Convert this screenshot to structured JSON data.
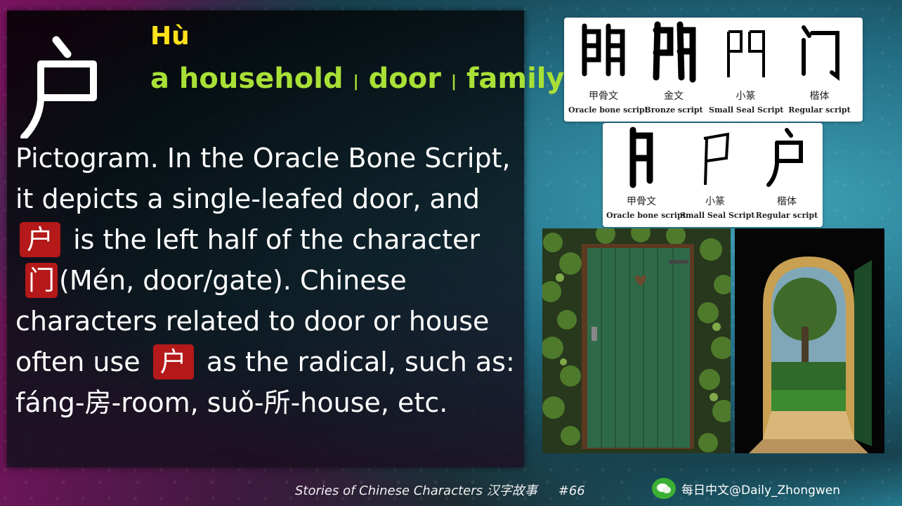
{
  "slide": {
    "character": "户",
    "pinyin": "Hù",
    "meanings": [
      "a household",
      "door",
      "family"
    ],
    "separator": "|",
    "description": {
      "p1": "Pictogram. In the Oracle Bone Script, it depicts a single-leafed door, and",
      "char1": "户",
      "p2": "is the left half of the character",
      "char2": "门",
      "p3": "(Mén, door/gate). Chinese characters related to door or house often use",
      "char3": "户",
      "p4": "as the radical, such as: fáng-房-room, suǒ-所-house, etc."
    }
  },
  "script_table_men": [
    {
      "cn": "甲骨文",
      "en": "Oracle bone script",
      "icon": "oracle-men-glyph"
    },
    {
      "cn": "金文",
      "en": "Bronze script",
      "icon": "bronze-men-glyph"
    },
    {
      "cn": "小篆",
      "en": "Small Seal Script",
      "icon": "seal-men-glyph"
    },
    {
      "cn": "楷体",
      "en": "Regular script",
      "icon": "regular-men-glyph"
    }
  ],
  "script_table_hu": [
    {
      "cn": "甲骨文",
      "en": "Oracle bone script",
      "icon": "oracle-hu-glyph"
    },
    {
      "cn": "小篆",
      "en": "Small Seal Script",
      "icon": "seal-hu-glyph"
    },
    {
      "cn": "楷体",
      "en": "Regular script",
      "icon": "regular-hu-glyph"
    }
  ],
  "photos": [
    "green-door-photo",
    "arched-door-photo"
  ],
  "footer": {
    "series": "Stories of Chinese Characters 汉字故事",
    "number": "#66",
    "brand": "每日中文@Daily_Zhongwen"
  },
  "colors": {
    "pinyin": "#ffe11a",
    "meaning": "#a9e036",
    "highlight": "#b51919"
  }
}
